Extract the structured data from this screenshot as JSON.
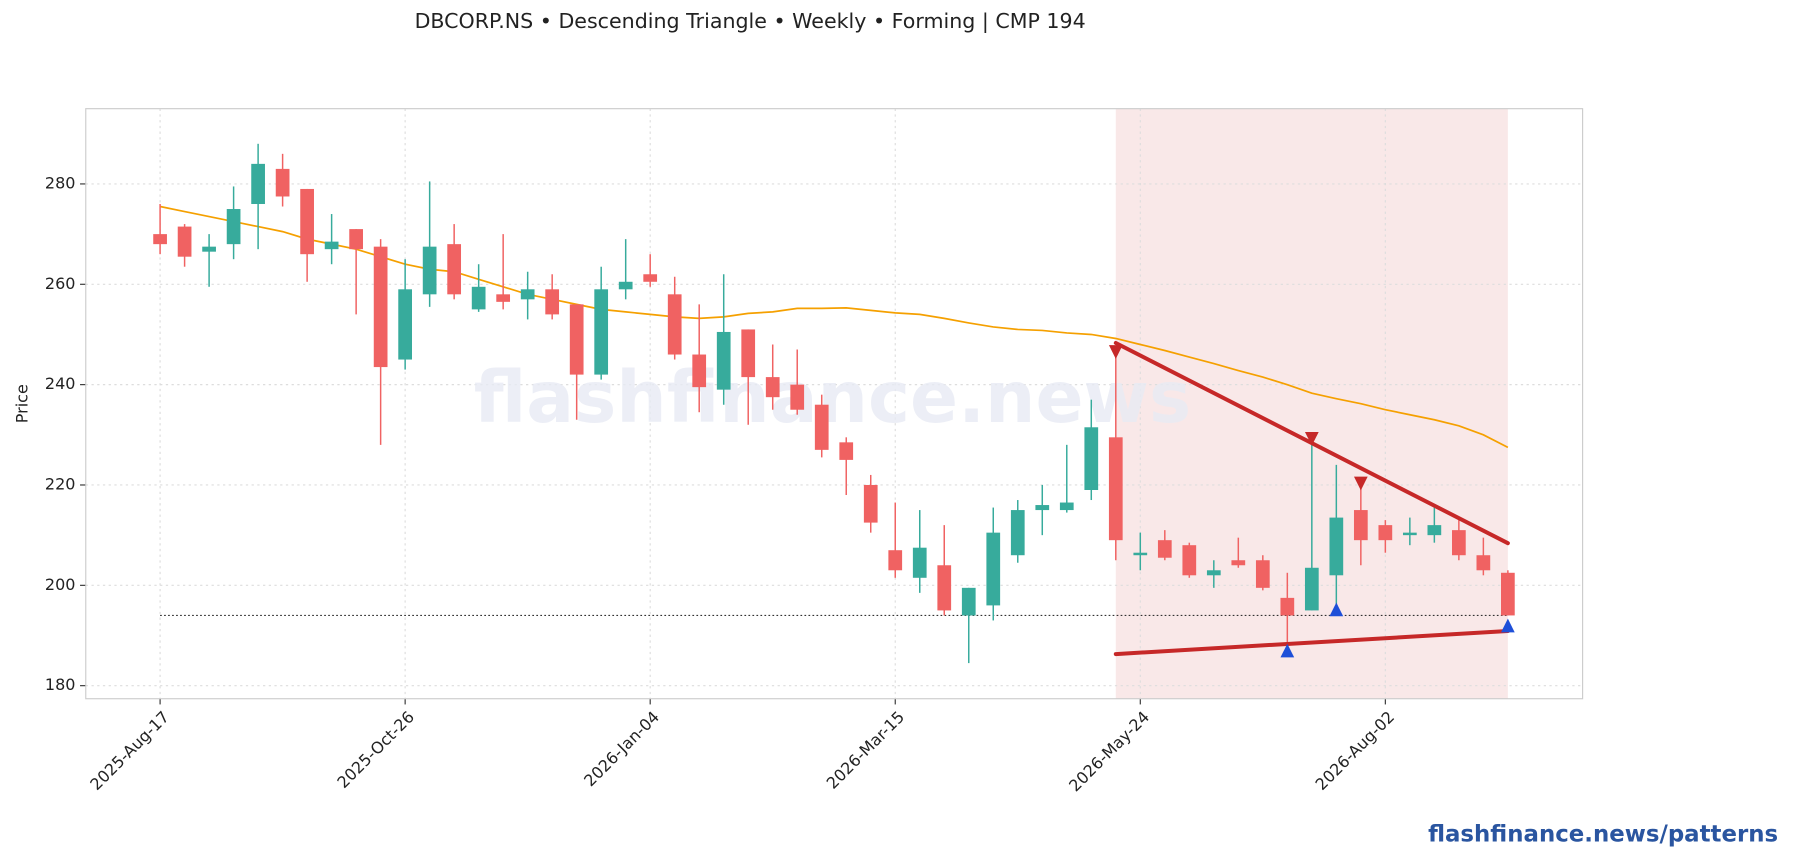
{
  "chart_data": {
    "type": "candlestick",
    "title": "DBCORP.NS  •  Descending Triangle  •  Weekly  •  Forming  |  CMP 194",
    "ylabel": "Price",
    "watermark": "flashfinance.news",
    "footer": "flashfinance.news/patterns",
    "categories": [
      "2025-Aug-17",
      null,
      null,
      null,
      null,
      null,
      null,
      null,
      null,
      null,
      "2025-Oct-26",
      null,
      null,
      null,
      null,
      null,
      null,
      null,
      null,
      null,
      "2026-Jan-04",
      null,
      null,
      null,
      null,
      null,
      null,
      null,
      null,
      null,
      "2026-Mar-15",
      null,
      null,
      null,
      null,
      null,
      null,
      null,
      null,
      null,
      "2026-May-24",
      null,
      null,
      null,
      null,
      null,
      null,
      null,
      null,
      null,
      "2026-Aug-02",
      null,
      null,
      null,
      null,
      null
    ],
    "open": [
      270,
      271.5,
      266.5,
      268,
      276,
      283,
      279,
      267,
      271,
      267.5,
      245,
      258,
      268,
      255,
      258,
      257,
      259,
      256,
      242,
      259,
      262,
      258,
      246,
      239,
      251,
      241.5,
      240,
      236,
      228.5,
      220,
      207,
      201.5,
      204,
      194,
      196,
      206,
      215,
      215,
      219,
      229.5,
      206,
      209,
      208,
      202,
      205,
      205,
      197.5,
      195,
      202,
      215,
      212,
      210,
      210,
      211,
      206,
      202.5
    ],
    "high": [
      276,
      272,
      270,
      279.5,
      288,
      286,
      279,
      274,
      271,
      269,
      265,
      280.5,
      272,
      264,
      270,
      262.5,
      262,
      256,
      263.5,
      269,
      266,
      261.5,
      256,
      262,
      251,
      248,
      247,
      238,
      229.5,
      222,
      216.5,
      215,
      212,
      199.5,
      215.5,
      217,
      220,
      228,
      237,
      246,
      210.5,
      211,
      208.5,
      205,
      209.5,
      206,
      202.5,
      228,
      224,
      220,
      213,
      213.5,
      215.5,
      213,
      209.5,
      203
    ],
    "low": [
      266,
      263.5,
      259.5,
      265,
      267,
      275.5,
      260.5,
      264,
      254,
      228,
      243,
      255.5,
      257,
      254.5,
      255,
      253,
      253,
      233,
      241,
      257,
      259.5,
      245,
      234.5,
      236,
      232,
      235,
      234,
      225.5,
      218,
      210.5,
      201.5,
      198.5,
      194,
      184.5,
      193,
      204.5,
      210,
      214.5,
      217,
      205,
      203,
      205,
      201.5,
      199.5,
      203.5,
      199,
      187,
      195,
      195,
      204,
      206.5,
      208,
      208.5,
      205,
      202,
      194
    ],
    "close": [
      268,
      265.5,
      267.5,
      275,
      284,
      277.5,
      266,
      268.5,
      267,
      243.5,
      259,
      267.5,
      258,
      259.5,
      256.5,
      259,
      254,
      242,
      259,
      260.5,
      260.5,
      246,
      239.5,
      250.5,
      241.5,
      237.5,
      235,
      227,
      225,
      212.5,
      203,
      207.5,
      195,
      199.5,
      210.5,
      215,
      216,
      216.5,
      231.5,
      209,
      206.5,
      205.5,
      202,
      203,
      204,
      199.5,
      194,
      203.5,
      213.5,
      209,
      209,
      210.5,
      212,
      206,
      203,
      194
    ],
    "up_color": "#37ab9c",
    "down_color": "#f06262",
    "ma": {
      "color": "#f5a000",
      "values": [
        275.5,
        274.5,
        273.5,
        272.5,
        271.5,
        270.5,
        269,
        268,
        267,
        265.5,
        264,
        263,
        262.5,
        261,
        259.5,
        258,
        257,
        256,
        255,
        254.5,
        254,
        253.5,
        253.2,
        253.5,
        254.2,
        254.5,
        255.2,
        255.2,
        255.3,
        254.8,
        254.3,
        254,
        253.2,
        252.3,
        251.5,
        251,
        250.8,
        250.3,
        250,
        249.2,
        248,
        246.8,
        245.5,
        244.2,
        242.8,
        241.5,
        240,
        238.3,
        237.2,
        236.2,
        235,
        234,
        233,
        231.8,
        230,
        227.5
      ]
    },
    "cmp_line": 194,
    "resistance": {
      "color": "#c62828",
      "x": [
        39,
        55
      ],
      "values": [
        248.3,
        208.4
      ]
    },
    "support": {
      "color": "#c62828",
      "x": [
        39,
        55
      ],
      "values": [
        186.3,
        190.9
      ]
    },
    "pivot_highs": {
      "color": "#c62828",
      "x": [
        39,
        47,
        49
      ],
      "values": [
        246.5,
        229.2,
        220.3
      ]
    },
    "pivot_lows": {
      "color": "#1e4fd8",
      "x": [
        46,
        48,
        55
      ],
      "values": [
        187,
        195.2,
        192
      ]
    },
    "zone_color": "#f9e8e8",
    "ylim": [
      177.4,
      295
    ],
    "yticks": [
      180,
      200,
      220,
      240,
      260,
      280
    ],
    "grid": true
  }
}
